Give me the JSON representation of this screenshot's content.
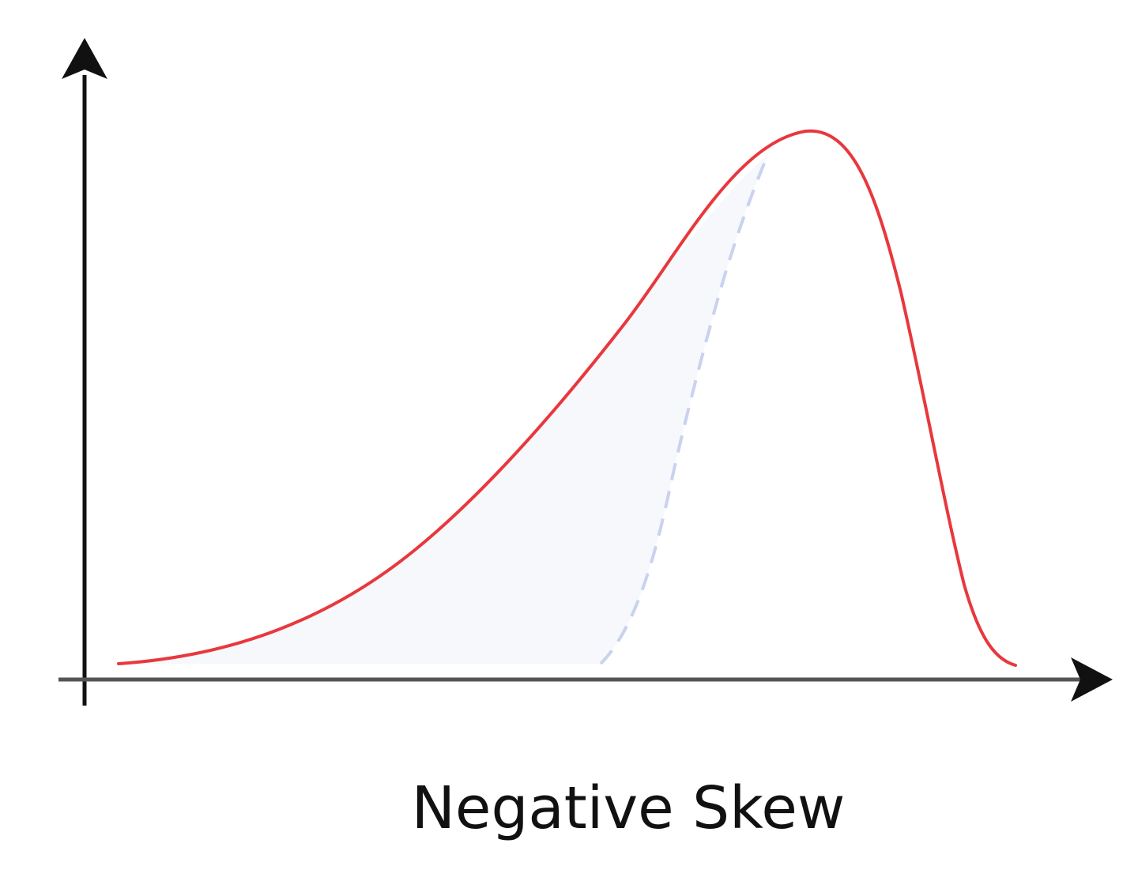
{
  "caption": "Negative Skew",
  "colors": {
    "axis": "#111111",
    "x_axis_line": "#555555",
    "curve": "#e8383d",
    "dashed_curve": "#c9d2ee",
    "shaded_area": "#f7f8fc"
  },
  "icons": {
    "y_axis_arrow": "arrow-up-icon",
    "x_axis_arrow": "arrow-right-icon"
  }
}
